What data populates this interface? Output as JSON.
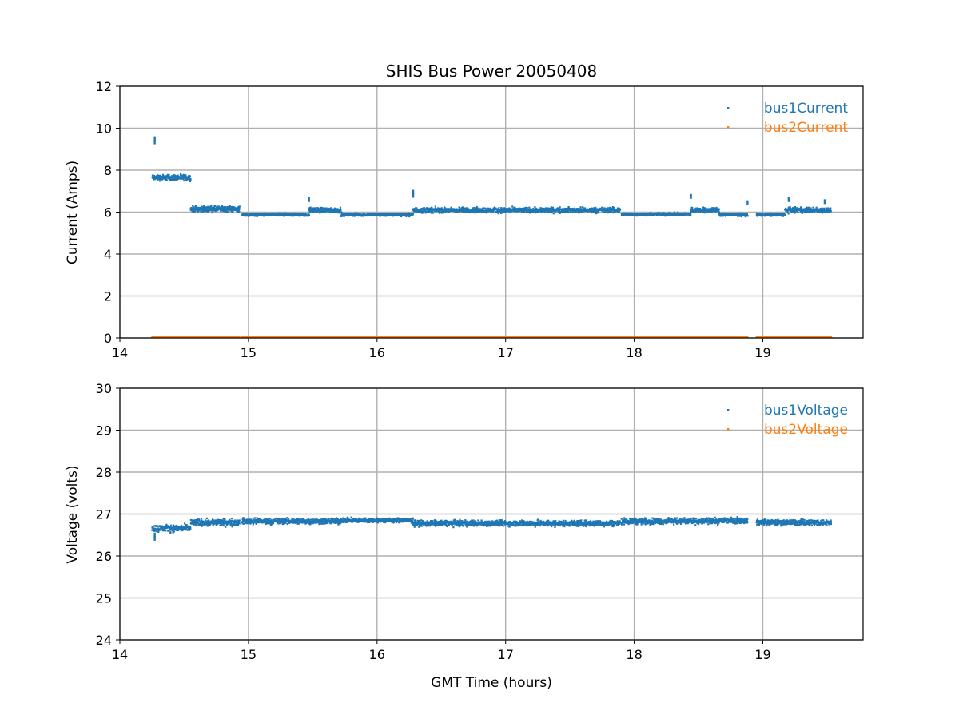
{
  "chart_data": [
    {
      "type": "scatter",
      "title": "SHIS Bus Power 20050408",
      "xlabel": "",
      "ylabel": "Current (Amps)",
      "xlim": [
        14,
        19.78
      ],
      "ylim": [
        0,
        12
      ],
      "xticks": [
        "14",
        "15",
        "16",
        "17",
        "18",
        "19"
      ],
      "yticks": [
        "0",
        "2",
        "4",
        "6",
        "8",
        "10",
        "12"
      ],
      "grid": true,
      "legend_position": "top-right",
      "series": [
        {
          "name": "bus1Current",
          "color": "#1f77b4",
          "segments": [
            {
              "x0": 14.25,
              "x1": 14.55,
              "mean": 7.65,
              "spread": 0.2
            },
            {
              "x0": 14.55,
              "x1": 14.93,
              "mean": 6.15,
              "spread": 0.2
            },
            {
              "x0": 14.95,
              "x1": 15.47,
              "mean": 5.88,
              "spread": 0.1
            },
            {
              "x0": 15.47,
              "x1": 15.72,
              "mean": 6.1,
              "spread": 0.18
            },
            {
              "x0": 15.72,
              "x1": 16.28,
              "mean": 5.88,
              "spread": 0.1
            },
            {
              "x0": 16.28,
              "x1": 17.89,
              "mean": 6.1,
              "spread": 0.18
            },
            {
              "x0": 17.9,
              "x1": 18.44,
              "mean": 5.9,
              "spread": 0.1
            },
            {
              "x0": 18.44,
              "x1": 18.66,
              "mean": 6.1,
              "spread": 0.18
            },
            {
              "x0": 18.66,
              "x1": 18.88,
              "mean": 5.88,
              "spread": 0.1
            },
            {
              "x0": 18.95,
              "x1": 19.17,
              "mean": 5.88,
              "spread": 0.1
            },
            {
              "x0": 19.17,
              "x1": 19.53,
              "mean": 6.1,
              "spread": 0.18
            }
          ],
          "outliers": [
            [
              14.27,
              9.5
            ],
            [
              14.27,
              9.35
            ],
            [
              15.47,
              6.6
            ],
            [
              16.28,
              6.95
            ],
            [
              16.28,
              6.8
            ],
            [
              18.44,
              6.75
            ],
            [
              18.88,
              6.45
            ],
            [
              19.2,
              6.6
            ],
            [
              19.48,
              6.5
            ]
          ]
        },
        {
          "name": "bus2Current",
          "color": "#ff7f0e",
          "segments": [
            {
              "x0": 14.25,
              "x1": 14.93,
              "mean": 0.06,
              "spread": 0.02
            },
            {
              "x0": 14.95,
              "x1": 18.88,
              "mean": 0.05,
              "spread": 0.02
            },
            {
              "x0": 18.95,
              "x1": 19.53,
              "mean": 0.05,
              "spread": 0.02
            }
          ],
          "outliers": []
        }
      ]
    },
    {
      "type": "scatter",
      "title": "",
      "xlabel": "GMT Time (hours)",
      "ylabel": "Voltage (volts)",
      "xlim": [
        14,
        19.78
      ],
      "ylim": [
        24,
        30
      ],
      "xticks": [
        "14",
        "15",
        "16",
        "17",
        "18",
        "19"
      ],
      "yticks": [
        "24",
        "25",
        "26",
        "27",
        "28",
        "29",
        "30"
      ],
      "grid": true,
      "legend_position": "top-right",
      "series": [
        {
          "name": "bus1Voltage",
          "color": "#1f77b4",
          "segments": [
            {
              "x0": 14.25,
              "x1": 14.55,
              "mean": 26.66,
              "spread": 0.12
            },
            {
              "x0": 14.55,
              "x1": 14.93,
              "mean": 26.8,
              "spread": 0.12
            },
            {
              "x0": 14.95,
              "x1": 15.72,
              "mean": 26.83,
              "spread": 0.1
            },
            {
              "x0": 15.72,
              "x1": 16.28,
              "mean": 26.85,
              "spread": 0.08
            },
            {
              "x0": 16.28,
              "x1": 17.89,
              "mean": 26.78,
              "spread": 0.1
            },
            {
              "x0": 17.9,
              "x1": 18.66,
              "mean": 26.83,
              "spread": 0.1
            },
            {
              "x0": 18.66,
              "x1": 18.88,
              "mean": 26.85,
              "spread": 0.1
            },
            {
              "x0": 18.95,
              "x1": 19.53,
              "mean": 26.8,
              "spread": 0.1
            }
          ],
          "outliers": [
            [
              14.27,
              26.42
            ],
            [
              14.27,
              26.5
            ]
          ]
        },
        {
          "name": "bus2Voltage",
          "color": "#ff7f0e",
          "segments": [],
          "outliers": []
        }
      ]
    }
  ]
}
